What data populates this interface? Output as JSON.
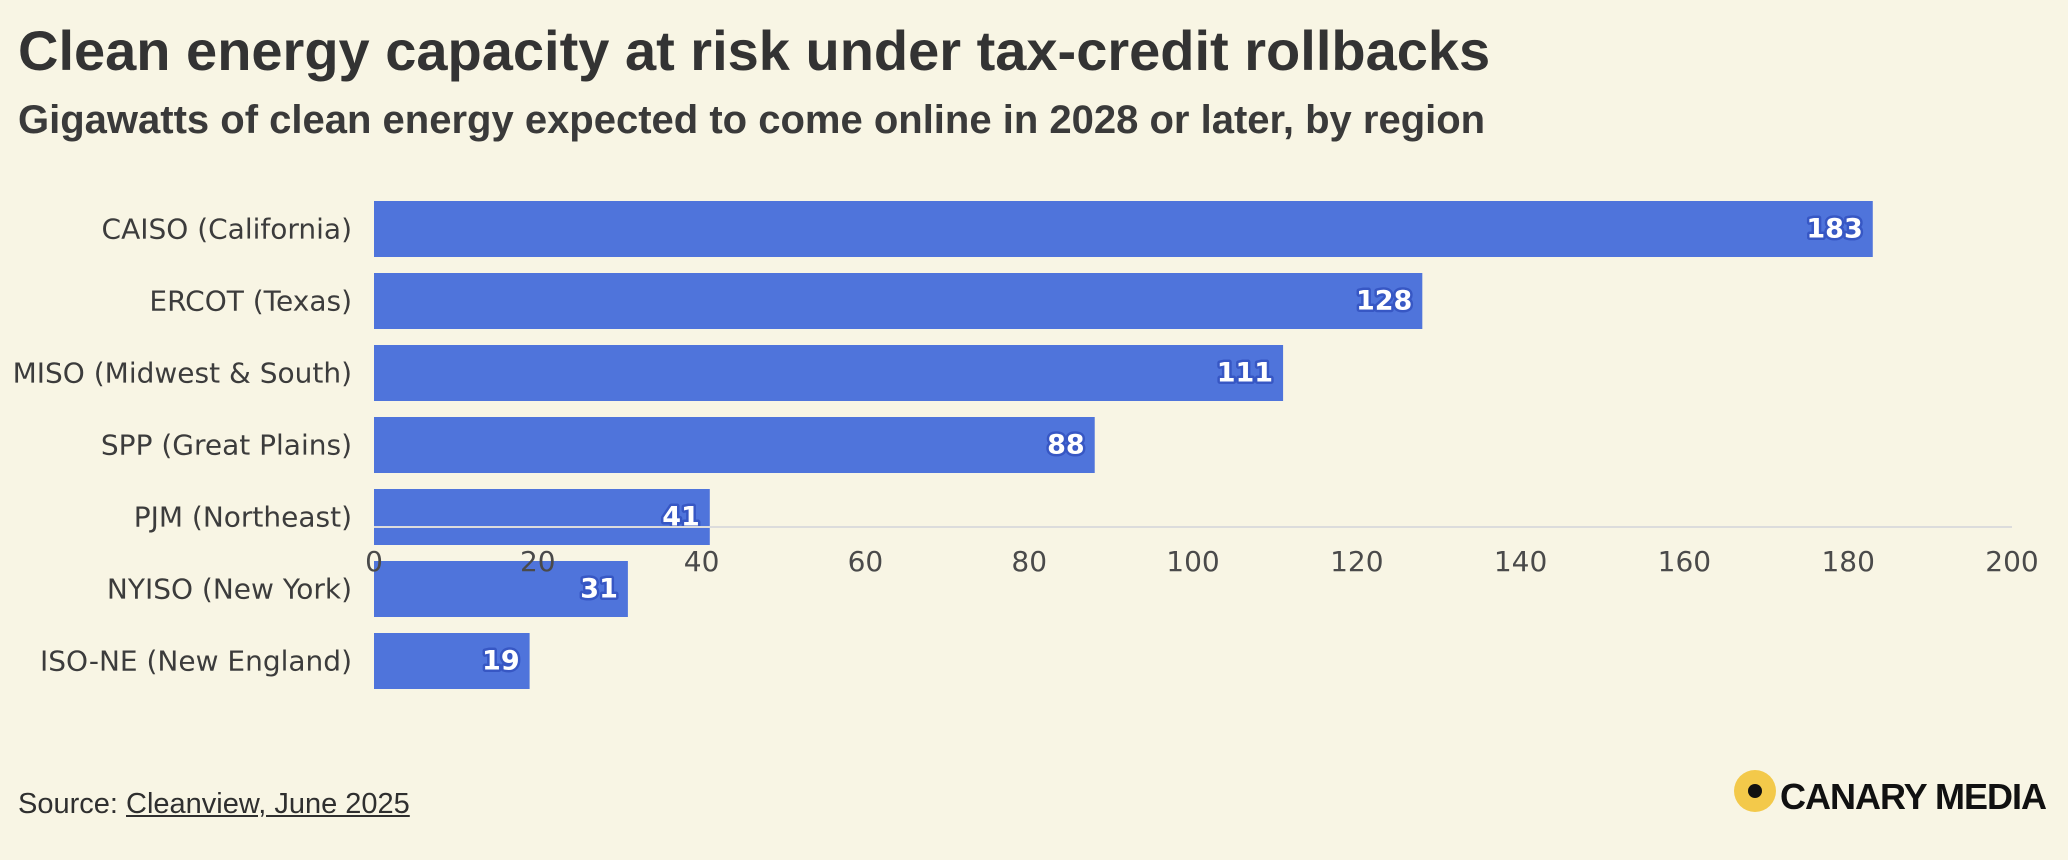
{
  "title": "Clean energy capacity at risk under tax-credit rollbacks",
  "subtitle": "Gigawatts of clean energy expected to come online in 2028 or later, by region",
  "source": {
    "prefix": "Source:",
    "link_text": "Cleanview, June 2025"
  },
  "brand": {
    "name": "CANARY MEDIA",
    "mark_color": "#f3c94a"
  },
  "colors": {
    "bar": "#4f74db",
    "background": "#f8f5e4"
  },
  "chart_data": {
    "type": "bar",
    "orientation": "horizontal",
    "title": "Clean energy capacity at risk under tax-credit rollbacks",
    "subtitle": "Gigawatts of clean energy expected to come online in 2028 or later, by region",
    "xlabel": "",
    "ylabel": "",
    "categories": [
      "CAISO (California)",
      "ERCOT (Texas)",
      "MISO (Midwest & South)",
      "SPP (Great Plains)",
      "PJM (Northeast)",
      "NYISO (New York)",
      "ISO-NE (New England)"
    ],
    "values": [
      183,
      128,
      111,
      88,
      41,
      31,
      19
    ],
    "xlim": [
      0,
      200
    ],
    "x_ticks": [
      "0",
      "20",
      "40",
      "60",
      "80",
      "100",
      "120",
      "140",
      "160",
      "180",
      "200"
    ],
    "units": "GW",
    "grid": false,
    "legend": "none"
  }
}
